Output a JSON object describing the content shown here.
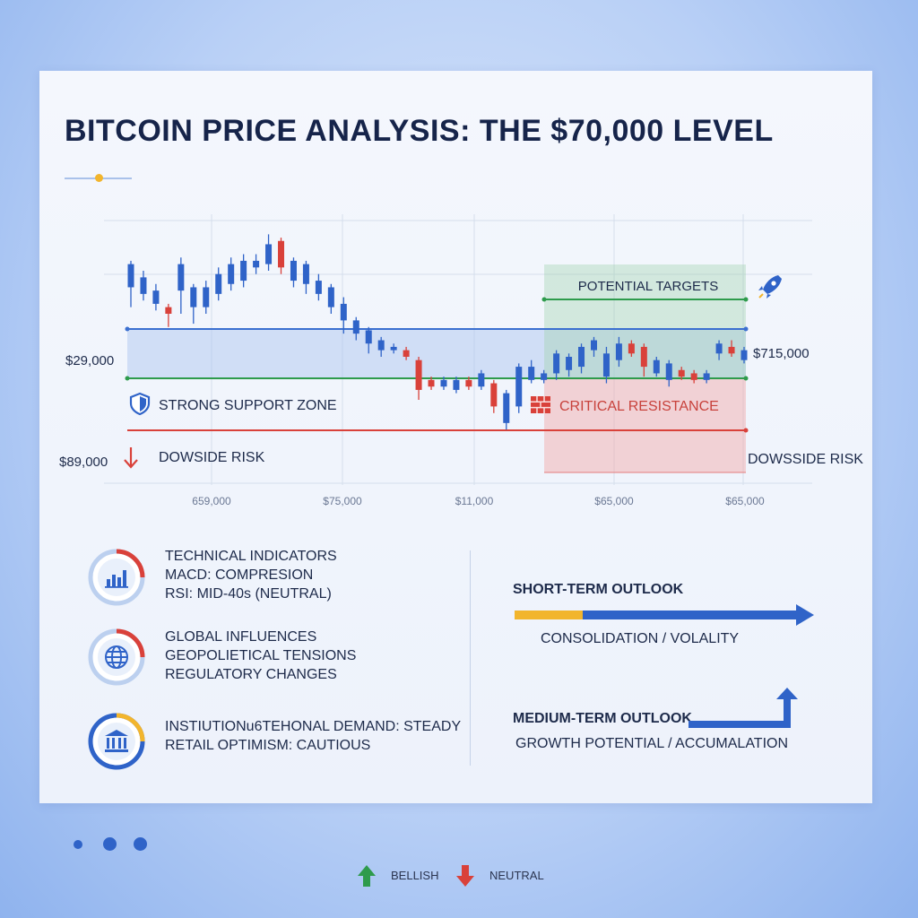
{
  "title": "BITCOIN PRICE ANALYSIS: THE $70,000 LEVEL",
  "colors": {
    "blue": "#2f63c8",
    "red": "#d9413a",
    "green": "#2e9b4c",
    "yellow": "#f2b52d",
    "navy": "#16244a"
  },
  "chart_data": {
    "type": "candlestick",
    "x_tick_labels": [
      "659,000",
      "$75,000",
      "$11,000",
      "$65,000",
      "$65,000"
    ],
    "left_labels": [
      "$29,000",
      "$89,000"
    ],
    "right_label": "$715,000",
    "zones": {
      "targets": "POTENTIAL TARGETS",
      "support": "STRONG SUPPORT ZONE",
      "resistance": "CRITICAL RESISTANCE",
      "downside_left": "DOWSIDE RISK",
      "downside_right": "DOWSSIDE RISK"
    },
    "grid": true,
    "candles": [
      {
        "o": 0.72,
        "c": 0.79,
        "h": 0.8,
        "l": 0.66,
        "up": true
      },
      {
        "o": 0.7,
        "c": 0.75,
        "h": 0.77,
        "l": 0.68,
        "up": true
      },
      {
        "o": 0.67,
        "c": 0.71,
        "h": 0.73,
        "l": 0.65,
        "up": true
      },
      {
        "o": 0.66,
        "c": 0.64,
        "h": 0.67,
        "l": 0.6,
        "up": false
      },
      {
        "o": 0.71,
        "c": 0.79,
        "h": 0.81,
        "l": 0.64,
        "up": true
      },
      {
        "o": 0.66,
        "c": 0.72,
        "h": 0.73,
        "l": 0.61,
        "up": true
      },
      {
        "o": 0.66,
        "c": 0.72,
        "h": 0.74,
        "l": 0.64,
        "up": true
      },
      {
        "o": 0.7,
        "c": 0.76,
        "h": 0.78,
        "l": 0.68,
        "up": true
      },
      {
        "o": 0.73,
        "c": 0.79,
        "h": 0.81,
        "l": 0.71,
        "up": true
      },
      {
        "o": 0.74,
        "c": 0.8,
        "h": 0.82,
        "l": 0.72,
        "up": true
      },
      {
        "o": 0.78,
        "c": 0.8,
        "h": 0.82,
        "l": 0.76,
        "up": true
      },
      {
        "o": 0.79,
        "c": 0.85,
        "h": 0.88,
        "l": 0.77,
        "up": true
      },
      {
        "o": 0.86,
        "c": 0.78,
        "h": 0.87,
        "l": 0.76,
        "up": false
      },
      {
        "o": 0.74,
        "c": 0.8,
        "h": 0.81,
        "l": 0.72,
        "up": true
      },
      {
        "o": 0.73,
        "c": 0.79,
        "h": 0.8,
        "l": 0.7,
        "up": true
      },
      {
        "o": 0.7,
        "c": 0.74,
        "h": 0.76,
        "l": 0.68,
        "up": true
      },
      {
        "o": 0.66,
        "c": 0.72,
        "h": 0.73,
        "l": 0.64,
        "up": true
      },
      {
        "o": 0.62,
        "c": 0.67,
        "h": 0.69,
        "l": 0.58,
        "up": true
      },
      {
        "o": 0.58,
        "c": 0.62,
        "h": 0.63,
        "l": 0.56,
        "up": true
      },
      {
        "o": 0.55,
        "c": 0.59,
        "h": 0.6,
        "l": 0.52,
        "up": true
      },
      {
        "o": 0.53,
        "c": 0.56,
        "h": 0.57,
        "l": 0.51,
        "up": true
      },
      {
        "o": 0.53,
        "c": 0.54,
        "h": 0.55,
        "l": 0.52,
        "up": true
      },
      {
        "o": 0.53,
        "c": 0.51,
        "h": 0.54,
        "l": 0.5,
        "up": false
      },
      {
        "o": 0.5,
        "c": 0.41,
        "h": 0.51,
        "l": 0.38,
        "up": false
      },
      {
        "o": 0.44,
        "c": 0.42,
        "h": 0.45,
        "l": 0.41,
        "up": false
      },
      {
        "o": 0.42,
        "c": 0.44,
        "h": 0.45,
        "l": 0.41,
        "up": true
      },
      {
        "o": 0.41,
        "c": 0.44,
        "h": 0.45,
        "l": 0.4,
        "up": true
      },
      {
        "o": 0.44,
        "c": 0.42,
        "h": 0.45,
        "l": 0.41,
        "up": false
      },
      {
        "o": 0.42,
        "c": 0.46,
        "h": 0.47,
        "l": 0.41,
        "up": true
      },
      {
        "o": 0.43,
        "c": 0.36,
        "h": 0.44,
        "l": 0.34,
        "up": false
      },
      {
        "o": 0.31,
        "c": 0.4,
        "h": 0.41,
        "l": 0.29,
        "up": true
      },
      {
        "o": 0.36,
        "c": 0.48,
        "h": 0.49,
        "l": 0.34,
        "up": true
      },
      {
        "o": 0.44,
        "c": 0.48,
        "h": 0.5,
        "l": 0.43,
        "up": true
      },
      {
        "o": 0.44,
        "c": 0.46,
        "h": 0.47,
        "l": 0.43,
        "up": true
      },
      {
        "o": 0.46,
        "c": 0.52,
        "h": 0.53,
        "l": 0.44,
        "up": true
      },
      {
        "o": 0.47,
        "c": 0.51,
        "h": 0.52,
        "l": 0.45,
        "up": true
      },
      {
        "o": 0.48,
        "c": 0.54,
        "h": 0.55,
        "l": 0.46,
        "up": true
      },
      {
        "o": 0.53,
        "c": 0.56,
        "h": 0.57,
        "l": 0.51,
        "up": true
      },
      {
        "o": 0.45,
        "c": 0.52,
        "h": 0.54,
        "l": 0.43,
        "up": true
      },
      {
        "o": 0.5,
        "c": 0.55,
        "h": 0.57,
        "l": 0.48,
        "up": true
      },
      {
        "o": 0.55,
        "c": 0.52,
        "h": 0.56,
        "l": 0.51,
        "up": false
      },
      {
        "o": 0.54,
        "c": 0.48,
        "h": 0.55,
        "l": 0.45,
        "up": false
      },
      {
        "o": 0.46,
        "c": 0.5,
        "h": 0.51,
        "l": 0.45,
        "up": true
      },
      {
        "o": 0.44,
        "c": 0.49,
        "h": 0.5,
        "l": 0.42,
        "up": true
      },
      {
        "o": 0.47,
        "c": 0.45,
        "h": 0.48,
        "l": 0.44,
        "up": false
      },
      {
        "o": 0.46,
        "c": 0.44,
        "h": 0.47,
        "l": 0.43,
        "up": false
      },
      {
        "o": 0.44,
        "c": 0.46,
        "h": 0.47,
        "l": 0.43,
        "up": true
      },
      {
        "o": 0.52,
        "c": 0.55,
        "h": 0.56,
        "l": 0.5,
        "up": true
      },
      {
        "o": 0.54,
        "c": 0.52,
        "h": 0.56,
        "l": 0.51,
        "up": false
      },
      {
        "o": 0.5,
        "c": 0.53,
        "h": 0.54,
        "l": 0.49,
        "up": true
      }
    ]
  },
  "indicators": {
    "technical": [
      "TECHNICAL INDICATORS",
      "MACD: COMPRESION",
      "RSI: MID-40s (NEUTRAL)"
    ],
    "global": [
      "GLOBAL INFLUENCES",
      "GEOPOLIETICAL TENSIONS",
      "REGULATORY CHANGES"
    ],
    "institutional": [
      "INSTIUTIONu6TEHONAL DEMAND: STEADY",
      "RETAIL OPTIMISM: CAUTIOUS"
    ]
  },
  "outlook": {
    "short_title": "SHORT-TERM OUTLOOK",
    "short_sub": "CONSOLIDATION / VOLALITY",
    "medium_title": "MEDIUM-TERM OUTLOOK",
    "medium_sub": "GROWTH POTENTIAL / ACCUMALATION"
  },
  "legend": {
    "bullish": "BELLISH",
    "neutral": "NEUTRAL"
  },
  "icons": {
    "support": "shield-icon",
    "resistance": "brick-wall-icon",
    "targets": "rocket-icon",
    "downside": "arrow-down-icon",
    "technical": "bar-chart-icon",
    "global": "globe-icon",
    "institutional": "bank-icon"
  }
}
